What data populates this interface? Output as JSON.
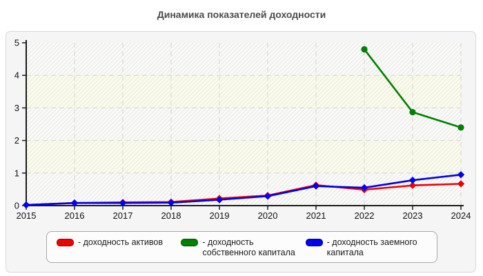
{
  "page": {
    "title": "Динамика показателей доходности"
  },
  "legend": {
    "label_prefix": "- "
  },
  "chart_data": {
    "type": "line",
    "title": "Динамика показателей доходности",
    "categories": [
      "2015",
      "2016",
      "2017",
      "2018",
      "2019",
      "2020",
      "2021",
      "2022",
      "2023",
      "2024"
    ],
    "y_ticks": [
      0,
      1,
      2,
      3,
      4,
      5
    ],
    "ylim": [
      0,
      5
    ],
    "grid": true,
    "legend_position": "bottom",
    "plot_style": {
      "band_color_a": "#fafaf8",
      "band_hatch_a": "#e7e7e4",
      "band_color_b": "#fbfbee",
      "band_hatch_b": "#ebebd8",
      "gridline_color": "#d4d4d4",
      "axis_color": "#1a1a1a"
    },
    "series": [
      {
        "name": "доходность активов",
        "color": "#ee0000",
        "marker": "diamond",
        "values": [
          0.02,
          0.08,
          0.1,
          0.11,
          0.22,
          0.31,
          0.63,
          0.49,
          0.62,
          0.67
        ]
      },
      {
        "name": "доходность собственного капитала",
        "color": "#008000",
        "marker": "circle",
        "values": [
          null,
          null,
          null,
          null,
          null,
          null,
          null,
          4.8,
          2.87,
          2.4
        ]
      },
      {
        "name": "доходность заемного капитала",
        "color": "#0000ee",
        "marker": "diamond",
        "values": [
          0.02,
          0.08,
          0.08,
          0.09,
          0.18,
          0.29,
          0.6,
          0.55,
          0.78,
          0.95
        ]
      }
    ]
  }
}
